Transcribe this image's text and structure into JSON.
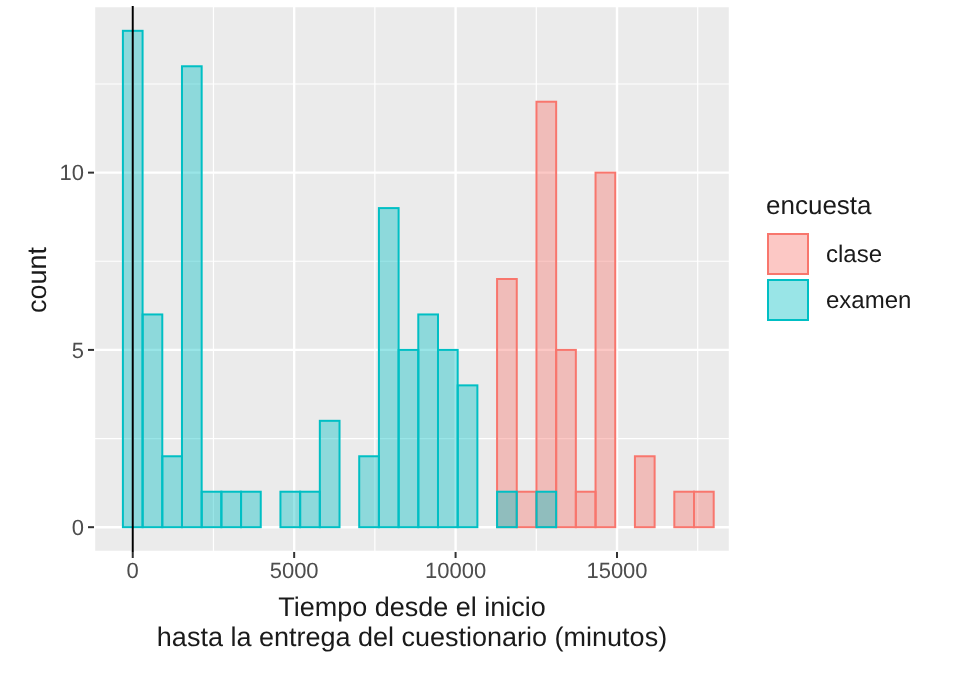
{
  "chart_data": {
    "type": "histogram",
    "xlabel": "Tiempo desde el inicio\nhasta la entrega del cuestionario (minutos)",
    "ylabel": "count",
    "legend_title": "encuesta",
    "bins": [
      -305,
      305,
      915,
      1525,
      2135,
      2745,
      3355,
      3965,
      4575,
      5185,
      5795,
      6405,
      7015,
      7625,
      8235,
      8845,
      9455,
      10065,
      10675,
      11285,
      11895,
      12505,
      13115,
      13725,
      14335,
      14945,
      15555,
      16165,
      16775,
      17385,
      17995
    ],
    "series": [
      {
        "name": "clase",
        "color": "#f8766d",
        "values": [
          0,
          0,
          0,
          0,
          0,
          0,
          0,
          0,
          0,
          0,
          0,
          0,
          0,
          0,
          0,
          0,
          0,
          0,
          0,
          7,
          1,
          12,
          5,
          1,
          10,
          0,
          2,
          0,
          1,
          1
        ]
      },
      {
        "name": "examen",
        "color": "#00bfc4",
        "values": [
          14,
          6,
          2,
          13,
          1,
          1,
          1,
          0,
          1,
          1,
          3,
          0,
          2,
          9,
          5,
          6,
          5,
          4,
          0,
          1,
          0,
          1,
          0,
          0,
          0,
          0,
          0,
          0,
          0,
          0
        ]
      }
    ],
    "xlim": [
      -1200,
      18500
    ],
    "xticks": [
      0,
      5000,
      10000,
      15000
    ],
    "ylim": [
      -0.7,
      14.7
    ],
    "yticks": [
      0,
      5,
      10
    ],
    "ref_lines": [
      {
        "axis": "x",
        "value": 0,
        "color": "#000000"
      }
    ],
    "grid": true,
    "legend": "right"
  }
}
